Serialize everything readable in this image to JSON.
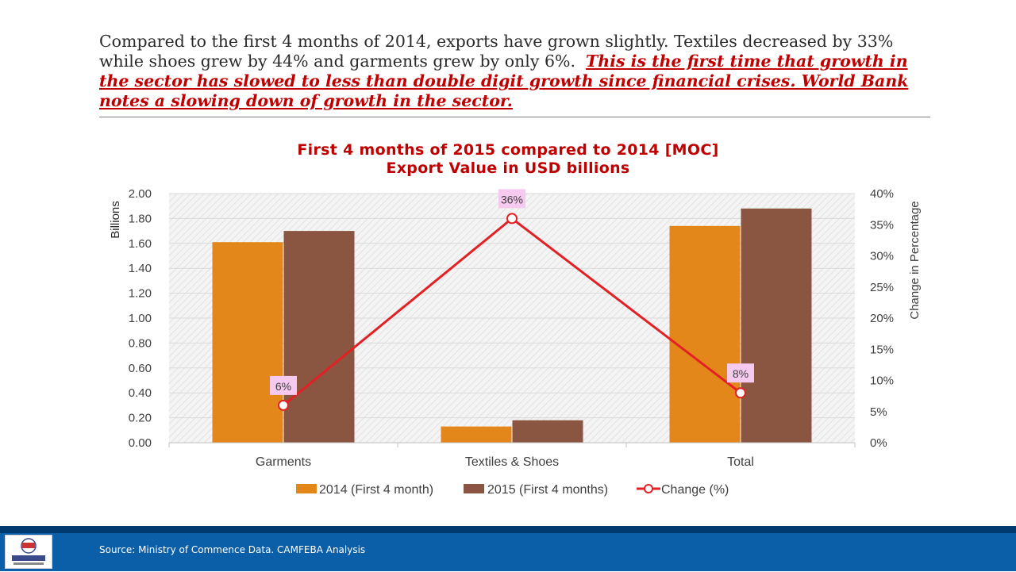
{
  "headline": {
    "plain": "Compared to the first 4 months of 2014, exports have grown slightly. Textiles decreased by 33% while shoes grew by 44% and garments grew by only 6%.",
    "emphasis": "This is the first time that growth in the sector has slowed to less than double digit growth since financial crises. World Bank notes a slowing down of growth in the sector."
  },
  "footer": {
    "source": "Source:  Ministry of Commence Data. CAMFEBA Analysis"
  },
  "colors": {
    "bar_2014": "#e3871a",
    "bar_2015": "#8a5641",
    "change_line": "#e32024",
    "title": "#c00000",
    "footer_band": "#0b5ea8"
  },
  "chart_data": {
    "type": "bar",
    "title_line1": "First 4 months of 2015 compared to 2014 [MOC]",
    "title_line2": "Export Value in USD billions",
    "categories": [
      "Garments",
      "Textiles & Shoes",
      "Total"
    ],
    "series": [
      {
        "name": "2014 (First 4 month)",
        "kind": "bar",
        "axis": "left",
        "values": [
          1.61,
          0.13,
          1.74
        ]
      },
      {
        "name": "2015 (First 4 months)",
        "kind": "bar",
        "axis": "left",
        "values": [
          1.7,
          0.18,
          1.88
        ]
      },
      {
        "name": "Change (%)",
        "kind": "line",
        "axis": "right",
        "values": [
          6,
          36,
          8
        ],
        "labels": [
          "6%",
          "36%",
          "8%"
        ]
      }
    ],
    "ylabel": "Billions",
    "y2label": "Change in Percentage",
    "ylim": [
      0,
      2.0
    ],
    "y2lim": [
      0,
      40
    ],
    "yticks": [
      "0.00",
      "0.20",
      "0.40",
      "0.60",
      "0.80",
      "1.00",
      "1.20",
      "1.40",
      "1.60",
      "1.80",
      "2.00"
    ],
    "y2ticks": [
      "0%",
      "5%",
      "10%",
      "15%",
      "20%",
      "25%",
      "30%",
      "35%",
      "40%"
    ],
    "grid": true,
    "legend_position": "bottom"
  }
}
